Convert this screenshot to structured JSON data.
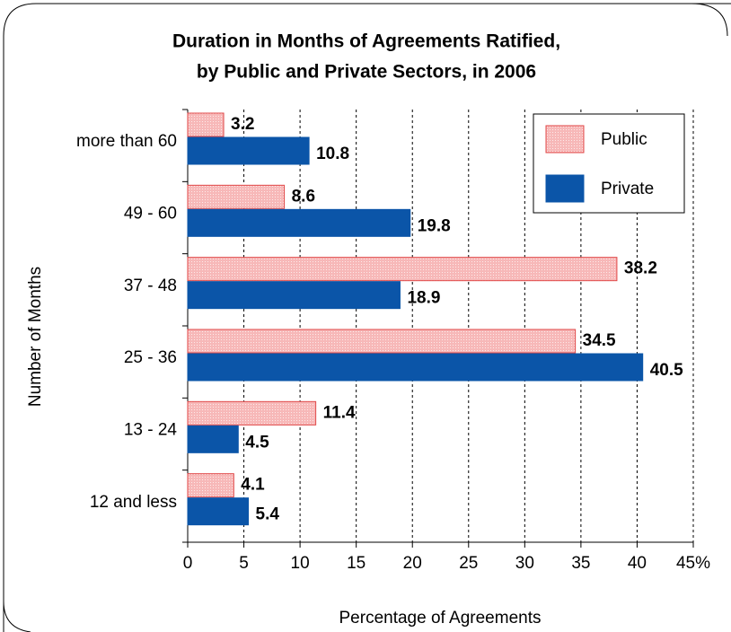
{
  "chart_data": {
    "type": "barh",
    "title": [
      "Duration in Months of Agreements Ratified,",
      "by Public and Private Sectors,  in 2006"
    ],
    "x_label": "Percentage of Agreements",
    "y_label": "Number of Months",
    "categories": [
      "more than 60",
      "49 - 60",
      "37 - 48",
      "25 - 36",
      "13 - 24",
      "12 and less"
    ],
    "series": [
      {
        "name": "Public",
        "color": "#f7b8b8",
        "edge_color": "#e04848",
        "label_color": "#e8202a",
        "values": [
          3.2,
          8.6,
          38.2,
          34.5,
          11.4,
          4.1
        ]
      },
      {
        "name": "Private",
        "color": "#0b55a8",
        "edge_color": "#0b55a8",
        "label_color": "#1a58a0",
        "values": [
          10.8,
          19.8,
          18.9,
          40.5,
          4.5,
          5.4
        ]
      }
    ],
    "xlim": [
      0,
      45
    ],
    "xticks": [
      0,
      5,
      10,
      15,
      20,
      25,
      30,
      35,
      40,
      {
        "value": 45,
        "label": "45%"
      }
    ],
    "grid": true,
    "legend": "upper right"
  }
}
